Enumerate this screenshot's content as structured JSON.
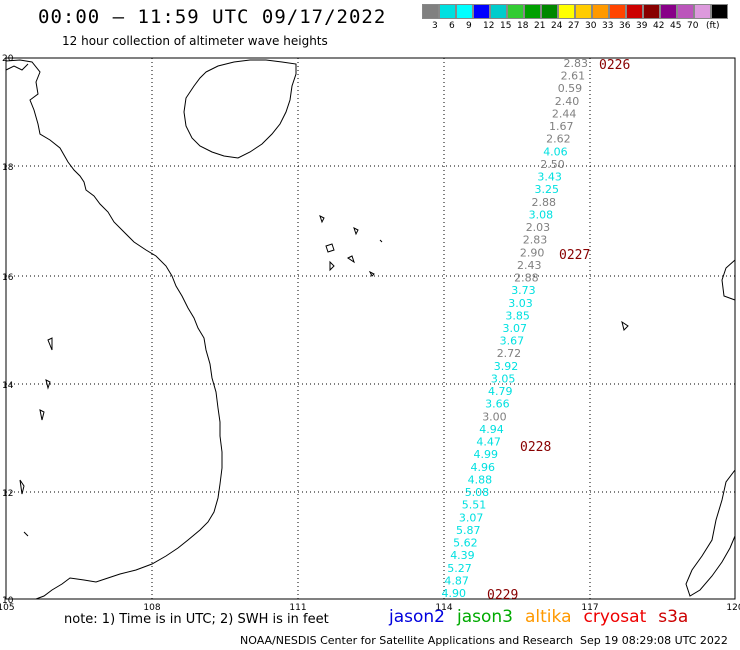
{
  "header": {
    "title": "00:00 – 11:59 UTC 09/17/2022",
    "subtitle": "12 hour collection of altimeter wave heights"
  },
  "legend_scale": {
    "unit": "(ft)",
    "colors": [
      "#808080",
      "#00e0e0",
      "#00ffff",
      "#0000ff",
      "#00cccc",
      "#33cc33",
      "#00a000",
      "#008800",
      "#ffff00",
      "#ffcc00",
      "#ff9900",
      "#ff4400",
      "#cc0000",
      "#880000",
      "#880088",
      "#bb55bb",
      "#dd99dd",
      "#000000"
    ],
    "labels": [
      "3",
      "6",
      "9",
      "12",
      "15",
      "18",
      "21",
      "24",
      "27",
      "30",
      "33",
      "36",
      "39",
      "42",
      "45",
      "70"
    ]
  },
  "map": {
    "lat_labels": [
      "20",
      "18",
      "16",
      "14",
      "12",
      "10"
    ],
    "lon_labels": [
      "105",
      "108",
      "111",
      "114",
      "117",
      "120"
    ]
  },
  "track": {
    "observations": [
      {
        "v": "2.83",
        "c": "#808080"
      },
      {
        "v": "2.61",
        "c": "#808080"
      },
      {
        "v": "0.59",
        "c": "#808080"
      },
      {
        "v": "2.40",
        "c": "#808080"
      },
      {
        "v": "2.44",
        "c": "#808080"
      },
      {
        "v": "1.67",
        "c": "#808080"
      },
      {
        "v": "2.62",
        "c": "#808080"
      },
      {
        "v": "4.06",
        "c": "#00e0e0"
      },
      {
        "v": "2.50",
        "c": "#808080"
      },
      {
        "v": "3.43",
        "c": "#00e0e0"
      },
      {
        "v": "3.25",
        "c": "#00e0e0"
      },
      {
        "v": "2.88",
        "c": "#808080"
      },
      {
        "v": "3.08",
        "c": "#00e0e0"
      },
      {
        "v": "2.03",
        "c": "#808080"
      },
      {
        "v": "2.83",
        "c": "#808080"
      },
      {
        "v": "2.90",
        "c": "#808080"
      },
      {
        "v": "2.43",
        "c": "#808080"
      },
      {
        "v": "2.88",
        "c": "#808080"
      },
      {
        "v": "3.73",
        "c": "#00e0e0"
      },
      {
        "v": "3.03",
        "c": "#00e0e0"
      },
      {
        "v": "3.85",
        "c": "#00e0e0"
      },
      {
        "v": "3.07",
        "c": "#00e0e0"
      },
      {
        "v": "3.67",
        "c": "#00e0e0"
      },
      {
        "v": "2.72",
        "c": "#808080"
      },
      {
        "v": "3.92",
        "c": "#00e0e0"
      },
      {
        "v": "3.05",
        "c": "#00e0e0"
      },
      {
        "v": "4.79",
        "c": "#00e0e0"
      },
      {
        "v": "3.66",
        "c": "#00e0e0"
      },
      {
        "v": "3.00",
        "c": "#808080"
      },
      {
        "v": "4.94",
        "c": "#00e0e0"
      },
      {
        "v": "4.47",
        "c": "#00e0e0"
      },
      {
        "v": "4.99",
        "c": "#00e0e0"
      },
      {
        "v": "4.96",
        "c": "#00e0e0"
      },
      {
        "v": "4.88",
        "c": "#00e0e0"
      },
      {
        "v": "5.08",
        "c": "#00e0e0"
      },
      {
        "v": "5.51",
        "c": "#00e0e0"
      },
      {
        "v": "3.07",
        "c": "#00e0e0"
      },
      {
        "v": "5.87",
        "c": "#00e0e0"
      },
      {
        "v": "5.62",
        "c": "#00e0e0"
      },
      {
        "v": "4.39",
        "c": "#00e0e0"
      },
      {
        "v": "5.27",
        "c": "#00e0e0"
      },
      {
        "v": "4.87",
        "c": "#00e0e0"
      },
      {
        "v": "4.90",
        "c": "#00e0e0"
      }
    ],
    "time_labels": [
      "0226",
      "0227",
      "0228",
      "0229"
    ]
  },
  "footer": {
    "note": "note: 1) Time is in UTC; 2) SWH is in feet",
    "satellites": [
      {
        "name": "jason2",
        "color": "#0000dd"
      },
      {
        "name": "jason3",
        "color": "#00aa00"
      },
      {
        "name": "altika",
        "color": "#ff9900"
      },
      {
        "name": "cryosat",
        "color": "#ee0000"
      },
      {
        "name": "s3a",
        "color": "#cc0000"
      }
    ],
    "credit": "NOAA/NESDIS Center for Satellite Applications and Research",
    "timestamp": "Sep 19 08:29:08 UTC 2022"
  }
}
